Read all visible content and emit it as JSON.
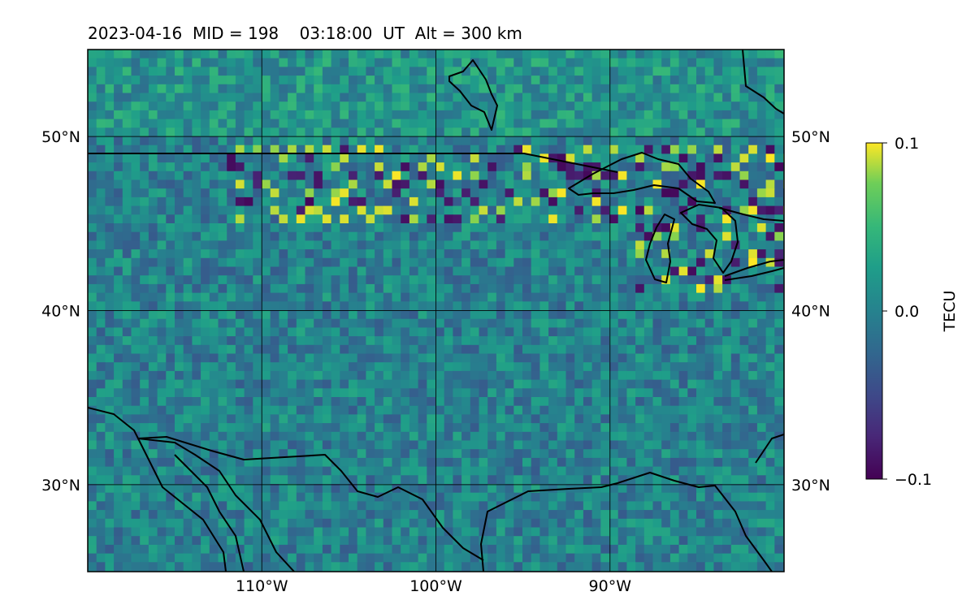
{
  "title": "2023-04-16  MID = 198    03:18:00  UT  Alt = 300 km",
  "map": {
    "lon_range": [
      -120,
      -80
    ],
    "lat_range": [
      25,
      55
    ],
    "grid": true,
    "lon_ticks": [
      {
        "value": -110,
        "label": "110°W"
      },
      {
        "value": -100,
        "label": "100°W"
      },
      {
        "value": -90,
        "label": "90°W"
      }
    ],
    "lat_ticks": [
      {
        "value": 30,
        "label": "30°N"
      },
      {
        "value": 40,
        "label": "40°N"
      },
      {
        "value": 50,
        "label": "50°N"
      }
    ],
    "field": "differential TEC, noisy pixel field; strong positive and negative values along 45–49°N and around the Great Lakes",
    "colormap": "viridis"
  },
  "colorbar": {
    "label": "TECU",
    "min": -0.1,
    "max": 0.1,
    "ticks": [
      {
        "value": 0.1,
        "label": "0.1"
      },
      {
        "value": 0.0,
        "label": "0.0"
      },
      {
        "value": -0.1,
        "label": "−0.1"
      }
    ]
  },
  "colors": {
    "viridis_low": "#440154",
    "viridis_mid": "#21918c",
    "viridis_high": "#fde725",
    "coastline": "#000000"
  }
}
